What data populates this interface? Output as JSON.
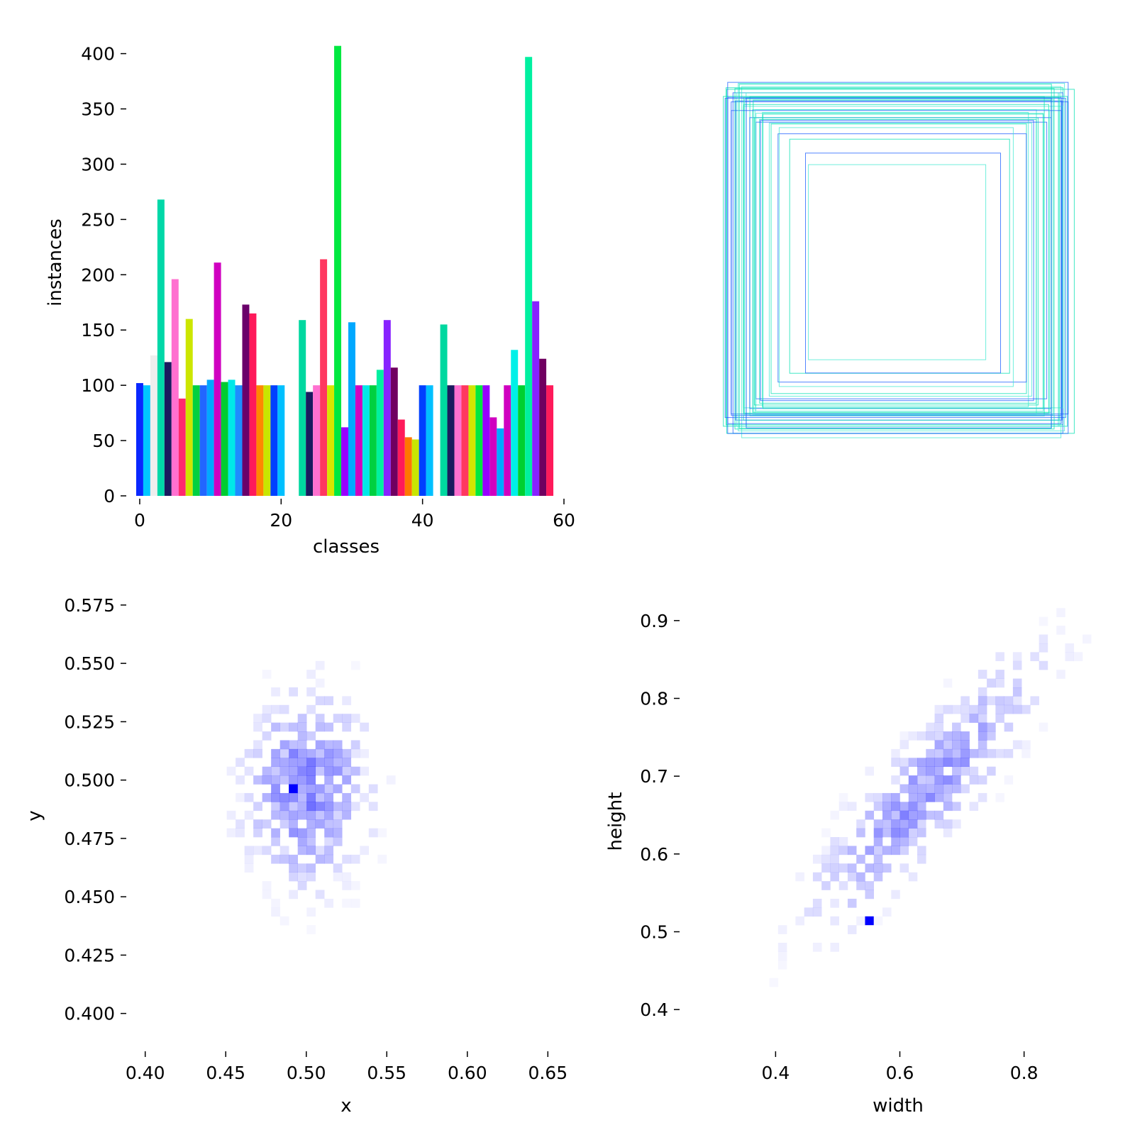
{
  "chart_data": [
    {
      "type": "bar",
      "panel": "class-histogram",
      "xlabel": "classes",
      "ylabel": "instances",
      "xlim": [
        -1.5,
        60
      ],
      "ylim": [
        0,
        410
      ],
      "x_ticks": [
        "0",
        "20",
        "40",
        "60"
      ],
      "y_ticks": [
        "0",
        "50",
        "100",
        "150",
        "200",
        "250",
        "300",
        "350",
        "400"
      ],
      "grid": false,
      "values": [
        102,
        100,
        127,
        268,
        121,
        196,
        88,
        160,
        100,
        100,
        105,
        211,
        103,
        105,
        100,
        173,
        165,
        100,
        100,
        100,
        100,
        0,
        0,
        159,
        94,
        100,
        214,
        100,
        407,
        62,
        157,
        100,
        100,
        100,
        114,
        159,
        116,
        69,
        53,
        51,
        100,
        100,
        0,
        155,
        100,
        100,
        100,
        100,
        100,
        100,
        71,
        61,
        100,
        132,
        100,
        397,
        176,
        124,
        100
      ],
      "colors": [
        "#0a28ff",
        "#00c8ff",
        "#eeeeee",
        "#00d8a8",
        "#1a1a5e",
        "#ff70d0",
        "#ff2a6e",
        "#cce600",
        "#00d040",
        "#2266ff",
        "#00a8ff",
        "#d000c0",
        "#00cc30",
        "#00e8e8",
        "#1e8cff",
        "#6a006a",
        "#ff1a5a",
        "#ff8800",
        "#c8e600",
        "#0040ff",
        "#00c0ff",
        "#ffffff",
        "#ffffff",
        "#00d8a0",
        "#1a1a5e",
        "#ff70d0",
        "#ff3860",
        "#d8e600",
        "#00e840",
        "#9900ff",
        "#00a8ff",
        "#d000c0",
        "#00e8e8",
        "#00d040",
        "#00f0a0",
        "#8822ff",
        "#700060",
        "#ff1a5a",
        "#ff7700",
        "#c8e600",
        "#0040ff",
        "#00c0ff",
        "#ffffff",
        "#00d8a0",
        "#1a1a5e",
        "#ff70d0",
        "#ff3860",
        "#d0e600",
        "#00e840",
        "#9900ff",
        "#d000c0",
        "#00a8ff",
        "#d000c0",
        "#00f0e8",
        "#00d030",
        "#00f0a0",
        "#8822ff",
        "#700060",
        "#ff1a5a"
      ]
    },
    {
      "type": "scatter",
      "panel": "box-overlay",
      "description_free": true,
      "box_colors": [
        "#00e0b0",
        "#1a5cff",
        "#40e8d0"
      ],
      "boxes_wh": [
        [
          0.95,
          0.95
        ],
        [
          0.93,
          0.96
        ],
        [
          0.9,
          0.99
        ],
        [
          0.97,
          0.93
        ],
        [
          0.92,
          0.9
        ],
        [
          0.88,
          0.94
        ],
        [
          0.86,
          0.87
        ],
        [
          0.95,
          0.88
        ],
        [
          0.9,
          0.85
        ],
        [
          0.83,
          0.9
        ],
        [
          0.85,
          0.82
        ],
        [
          0.8,
          0.86
        ],
        [
          0.78,
          0.8
        ],
        [
          0.82,
          0.78
        ],
        [
          0.75,
          0.83
        ],
        [
          0.72,
          0.76
        ],
        [
          0.7,
          0.7
        ],
        [
          0.66,
          0.73
        ],
        [
          0.62,
          0.66
        ],
        [
          0.55,
          0.62
        ],
        [
          0.5,
          0.55
        ],
        [
          0.98,
          0.97
        ],
        [
          0.94,
          0.92
        ],
        [
          0.91,
          0.94
        ],
        [
          0.89,
          0.91
        ],
        [
          0.96,
          0.9
        ],
        [
          0.87,
          0.89
        ],
        [
          0.84,
          0.88
        ],
        [
          0.93,
          0.86
        ],
        [
          0.81,
          0.84
        ],
        [
          0.79,
          0.83
        ],
        [
          0.77,
          0.79
        ],
        [
          0.74,
          0.77
        ],
        [
          0.9,
          0.96
        ],
        [
          0.96,
          0.99
        ],
        [
          0.92,
          0.98
        ],
        [
          0.88,
          0.97
        ],
        [
          0.86,
          0.93
        ],
        [
          0.83,
          0.86
        ],
        [
          0.8,
          0.81
        ]
      ]
    },
    {
      "type": "heatmap",
      "panel": "xy-density",
      "xlabel": "x",
      "ylabel": "y",
      "xlim": [
        0.39,
        0.66
      ],
      "ylim": [
        0.385,
        0.585
      ],
      "x_ticks": [
        "0.40",
        "0.45",
        "0.50",
        "0.55",
        "0.60",
        "0.65"
      ],
      "y_ticks": [
        "0.400",
        "0.425",
        "0.450",
        "0.475",
        "0.500",
        "0.525",
        "0.550",
        "0.575"
      ],
      "center": [
        0.5,
        0.497
      ],
      "spread": [
        0.024,
        0.026
      ],
      "peak": [
        0.49,
        0.495
      ],
      "color": "#0000ff"
    },
    {
      "type": "heatmap",
      "panel": "wh-density",
      "xlabel": "width",
      "ylabel": "height",
      "xlim": [
        0.25,
        0.95
      ],
      "ylim": [
        0.35,
        0.95
      ],
      "x_ticks": [
        "0.4",
        "0.6",
        "0.8"
      ],
      "y_ticks": [
        "0.4",
        "0.5",
        "0.6",
        "0.7",
        "0.8",
        "0.9"
      ],
      "center": [
        0.64,
        0.68
      ],
      "spread": [
        0.12,
        0.11
      ],
      "correlation": 0.88,
      "peak": [
        0.555,
        0.517
      ],
      "color": "#0000ff"
    }
  ]
}
